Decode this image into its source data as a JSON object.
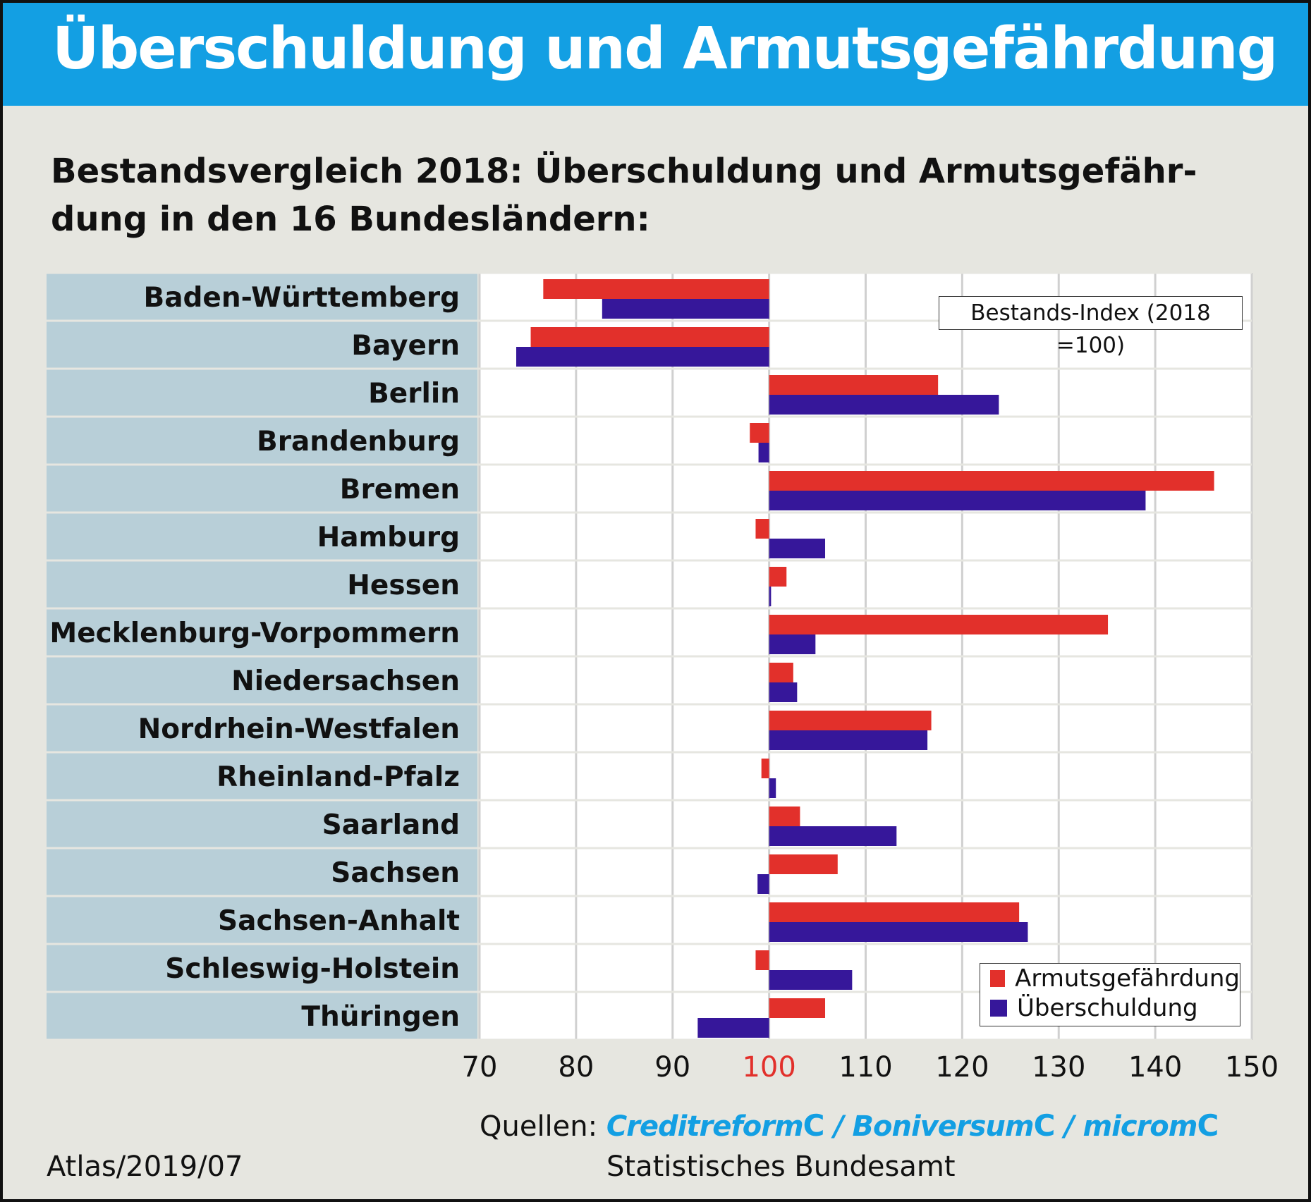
{
  "title": "Überschuldung und Armutsgefährdung",
  "subtitle": "Bestandsvergleich 2018: Überschuldung und Armutsgefähr-dung in den 16 Bundesländern:",
  "sources": {
    "label": "Quellen:",
    "brand1": "Creditreform",
    "sep1": "/",
    "brand2": "Boniversum",
    "sep2": "/",
    "brand3": "microm",
    "brand_mark": "C",
    "line2": "Statistisches Bundesamt"
  },
  "credit": "Atlas/2019/07",
  "chart_data": {
    "type": "bar",
    "orientation": "horizontal",
    "index_label": "Bestands-Index (2018 =100)",
    "baseline": 100,
    "xlim": [
      70,
      150
    ],
    "xticks": [
      70,
      80,
      90,
      100,
      110,
      120,
      130,
      140,
      150
    ],
    "highlight_tick": 100,
    "grid": true,
    "legend_position": "bottom-right",
    "categories": [
      "Baden-Württemberg",
      "Bayern",
      "Berlin",
      "Brandenburg",
      "Bremen",
      "Hamburg",
      "Hessen",
      "Mecklenburg-Vorpommern",
      "Niedersachsen",
      "Nordrhein-Westfalen",
      "Rheinland-Pfalz",
      "Saarland",
      "Sachsen",
      "Sachsen-Anhalt",
      "Schleswig-Holstein",
      "Thüringen"
    ],
    "series": [
      {
        "name": "Armutsgefährdung",
        "color": "#e2302b",
        "values": [
          76.6,
          75.3,
          117.5,
          98.0,
          146.1,
          98.6,
          101.8,
          135.1,
          102.5,
          116.8,
          99.2,
          103.2,
          107.1,
          125.9,
          98.6,
          105.8
        ]
      },
      {
        "name": "Überschuldung",
        "color": "#36179a",
        "values": [
          82.7,
          73.8,
          123.8,
          98.9,
          139.0,
          105.8,
          100.2,
          104.8,
          102.9,
          116.4,
          100.7,
          113.2,
          98.8,
          126.8,
          108.6,
          92.6
        ]
      }
    ]
  }
}
